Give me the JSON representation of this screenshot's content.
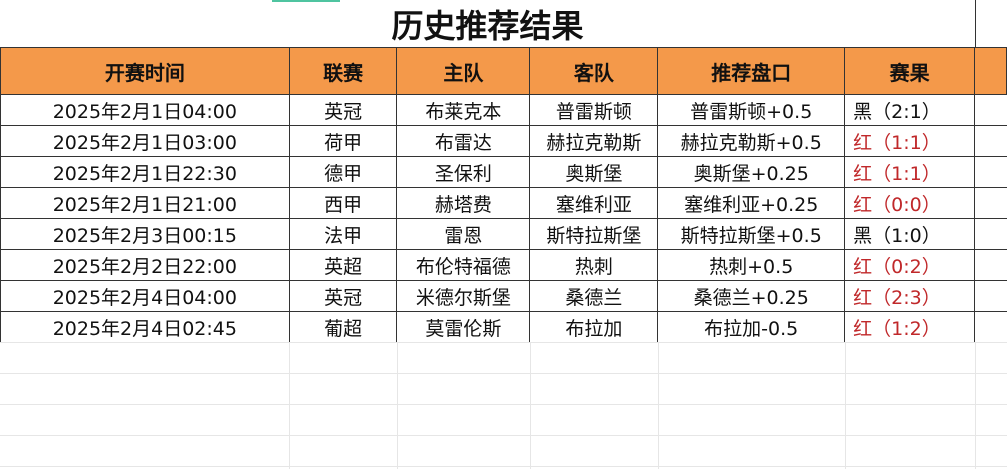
{
  "title": "历史推荐结果",
  "headers": [
    "开赛时间",
    "联赛",
    "主队",
    "客队",
    "推荐盘口",
    "赛果"
  ],
  "colors": {
    "header_bg": "#f4994a",
    "win": "#c0282a",
    "loss": "#111111"
  },
  "rows": [
    {
      "time": "2025年2月1日04:00",
      "league": "英冠",
      "home": "布莱克本",
      "away": "普雷斯顿",
      "pick": "普雷斯顿+0.5",
      "result": "黑（2:1）",
      "status": "loss"
    },
    {
      "time": "2025年2月1日03:00",
      "league": "荷甲",
      "home": "布雷达",
      "away": "赫拉克勒斯",
      "pick": "赫拉克勒斯+0.5",
      "result": "红（1:1）",
      "status": "win"
    },
    {
      "time": "2025年2月1日22:30",
      "league": "德甲",
      "home": "圣保利",
      "away": "奥斯堡",
      "pick": "奥斯堡+0.25",
      "result": "红（1:1）",
      "status": "win"
    },
    {
      "time": "2025年2月1日21:00",
      "league": "西甲",
      "home": "赫塔费",
      "away": "塞维利亚",
      "pick": "塞维利亚+0.25",
      "result": "红（0:0）",
      "status": "win"
    },
    {
      "time": "2025年2月3日00:15",
      "league": "法甲",
      "home": "雷恩",
      "away": "斯特拉斯堡",
      "pick": "斯特拉斯堡+0.5",
      "result": "黑（1:0）",
      "status": "loss"
    },
    {
      "time": "2025年2月2日22:00",
      "league": "英超",
      "home": "布伦特福德",
      "away": "热刺",
      "pick": "热刺+0.5",
      "result": "红（0:2）",
      "status": "win"
    },
    {
      "time": "2025年2月4日04:00",
      "league": "英冠",
      "home": "米德尔斯堡",
      "away": "桑德兰",
      "pick": "桑德兰+0.25",
      "result": "红（2:3）",
      "status": "win"
    },
    {
      "time": "2025年2月4日02:45",
      "league": "葡超",
      "home": "莫雷伦斯",
      "away": "布拉加",
      "pick": "布拉加-0.5",
      "result": "红（1:2）",
      "status": "win"
    }
  ]
}
